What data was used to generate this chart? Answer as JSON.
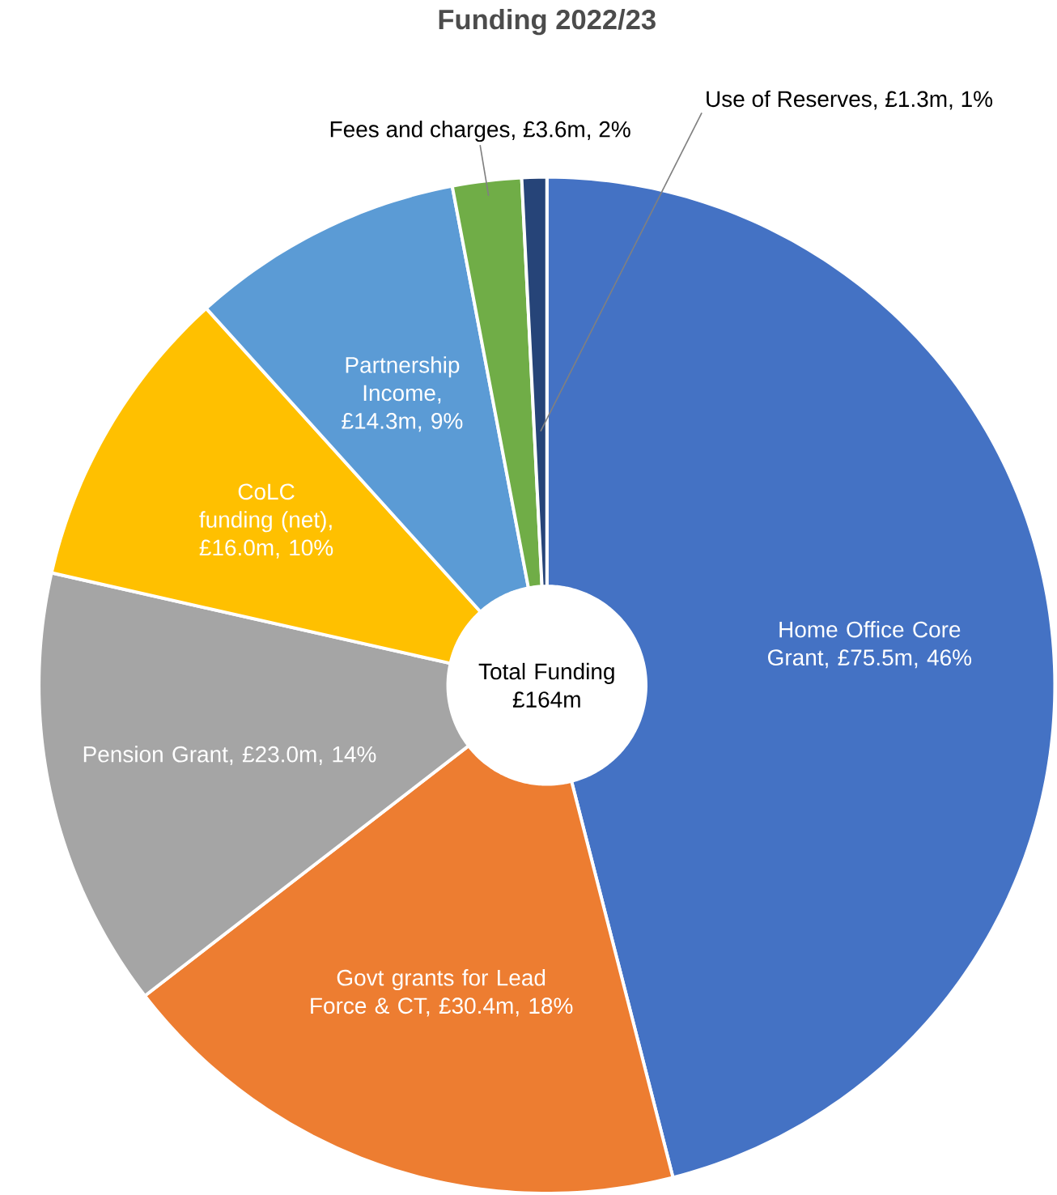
{
  "chart_data": {
    "type": "donut",
    "title": "Funding 2022/23",
    "categories": [
      "Home Office Core Grant, £75.5m, 46%",
      "Govt grants for Lead Force & CT, £30.4m, 18%",
      "Pension Grant, £23.0m, 14%",
      "CoLC funding (net), £16.0m, 10%",
      "Partnership Income, £14.3m, 9%",
      "Fees and charges, £3.6m, 2%",
      "Use of Reserves, £1.3m, 1%"
    ],
    "values": [
      75.5,
      30.4,
      23.0,
      16.0,
      14.3,
      3.6,
      1.3
    ],
    "colors": [
      "#4472c4",
      "#ed7d31",
      "#a5a5a5",
      "#ffc000",
      "#5b9bd5",
      "#70ad47",
      "#264478"
    ],
    "annotations": [
      "Total Funding £164m"
    ]
  }
}
